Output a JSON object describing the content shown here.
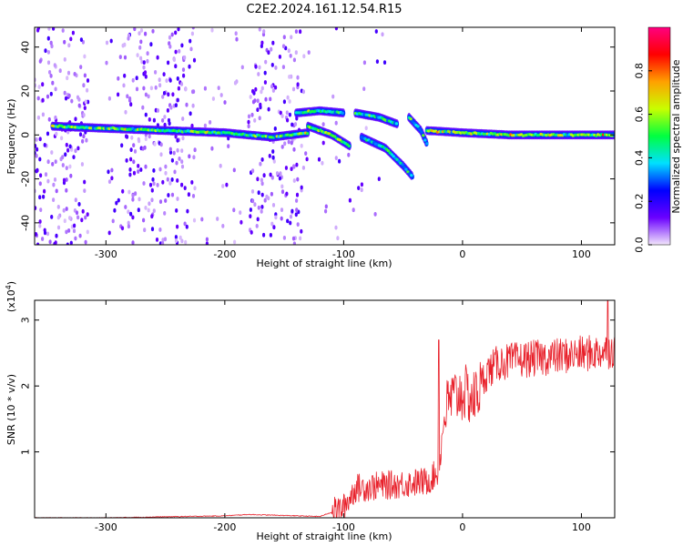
{
  "title": "C2E2.2024.161.12.54.R15",
  "chart_data": [
    {
      "type": "heatmap",
      "xlabel": "Height of straight line (km)",
      "ylabel": "Frequency (Hz)",
      "xlim": [
        -360,
        128
      ],
      "ylim": [
        -50,
        49
      ],
      "xticks": [
        -300,
        -200,
        -100,
        0,
        100
      ],
      "yticks": [
        -40,
        -20,
        0,
        20,
        40
      ],
      "colorbar": {
        "label": "Normalized spectral amplitude",
        "range": [
          0.0,
          1.0
        ],
        "ticks": [
          0.0,
          0.2,
          0.4,
          0.6,
          0.8
        ],
        "colormap": "rainbow",
        "colors": [
          "#f2e6fb",
          "#6a00ff",
          "#0000ff",
          "#00e0ff",
          "#00ff40",
          "#c8ff00",
          "#ffa000",
          "#ff0000",
          "#ff0080"
        ]
      },
      "ridges": [
        {
          "x": [
            -345,
            -300,
            -250,
            -200,
            -160,
            -130
          ],
          "y": [
            4,
            3,
            2,
            1,
            -1,
            1
          ],
          "amplitude": 0.5
        },
        {
          "x": [
            -140,
            -120,
            -100
          ],
          "y": [
            10,
            11,
            10
          ],
          "amplitude": 0.45
        },
        {
          "x": [
            -130,
            -110,
            -95
          ],
          "y": [
            4,
            0,
            -5
          ],
          "amplitude": 0.5
        },
        {
          "x": [
            -90,
            -70,
            -55
          ],
          "y": [
            10,
            8,
            5
          ],
          "amplitude": 0.4
        },
        {
          "x": [
            -85,
            -65,
            -50,
            -42
          ],
          "y": [
            -1,
            -6,
            -14,
            -19
          ],
          "amplitude": 0.4
        },
        {
          "x": [
            -45,
            -35,
            -30
          ],
          "y": [
            8,
            2,
            -4
          ],
          "amplitude": 0.4
        },
        {
          "x": [
            -30,
            0,
            40,
            90,
            128
          ],
          "y": [
            2,
            1,
            0,
            0,
            0
          ],
          "amplitude": 0.55
        }
      ]
    },
    {
      "type": "line",
      "xlabel": "Height of straight line (km)",
      "ylabel": "SNR (10 * v/v)",
      "ylabel_multiplier": "(x10^4)",
      "xlim": [
        -360,
        128
      ],
      "ylim": [
        0,
        3.3
      ],
      "xticks": [
        -300,
        -200,
        -100,
        0,
        100
      ],
      "yticks": [
        1,
        2,
        3
      ],
      "series_color": "#e8202a",
      "trend": {
        "x": [
          -360,
          -300,
          -200,
          -180,
          -120,
          -100,
          -90,
          -60,
          -30,
          -20,
          -15,
          -10,
          0,
          10,
          20,
          30,
          50,
          80,
          110,
          128
        ],
        "y": [
          0.0,
          0.0,
          0.03,
          0.05,
          0.02,
          0.15,
          0.45,
          0.5,
          0.55,
          0.7,
          1.6,
          1.8,
          1.9,
          1.8,
          2.2,
          2.35,
          2.4,
          2.45,
          2.5,
          2.55
        ]
      },
      "notable_points": [
        {
          "x": -20,
          "y": 2.7
        },
        {
          "x": 122,
          "y": 3.3
        }
      ]
    }
  ]
}
